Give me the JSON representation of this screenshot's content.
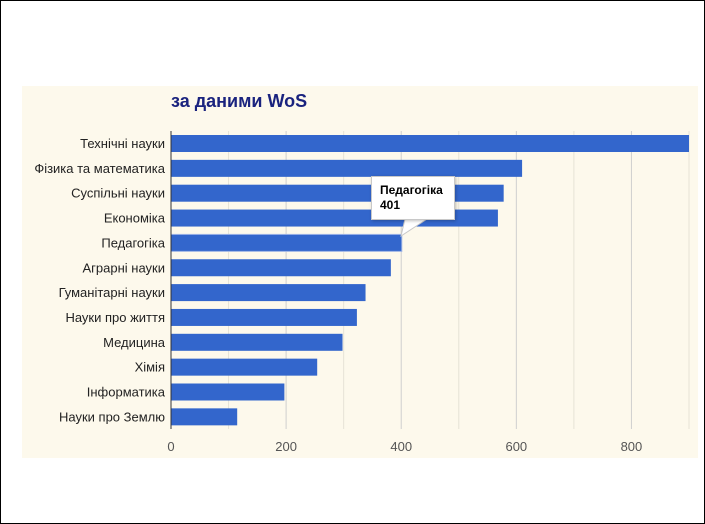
{
  "chart_data": {
    "type": "bar",
    "orientation": "horizontal",
    "title": "за даними WoS",
    "categories": [
      "Технічні науки",
      "Фізика та математика",
      "Суспільні науки",
      "Економіка",
      "Педагогіка",
      "Аграрні науки",
      "Гуманітарні науки",
      "Науки про життя",
      "Медицина",
      "Хімія",
      "Інформатика",
      "Науки про Землю"
    ],
    "values": [
      900,
      610,
      578,
      568,
      401,
      382,
      338,
      323,
      298,
      254,
      197,
      115
    ],
    "xlim": [
      0,
      900
    ],
    "xticks": [
      0,
      200,
      400,
      600,
      800
    ],
    "grid": true,
    "bar_color": "#3366cc",
    "background_color": "#fdf9ec",
    "tooltip": {
      "category": "Педагогіка",
      "value": "401"
    }
  }
}
